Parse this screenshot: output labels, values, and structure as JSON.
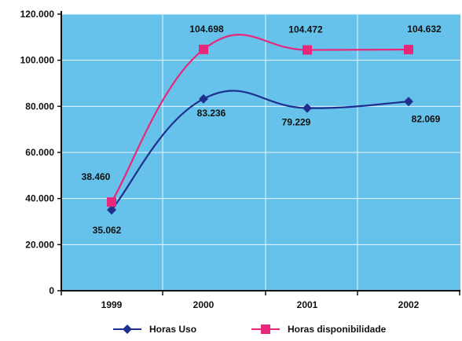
{
  "chart_data": {
    "type": "line",
    "title": "",
    "xlabel": "",
    "ylabel": "",
    "categories": [
      "1999",
      "2000",
      "2001",
      "2002"
    ],
    "ylim": [
      0,
      120000
    ],
    "y_ticks": [
      "0",
      "20.000",
      "40.000",
      "60.000",
      "80.000",
      "100.000",
      "120.000"
    ],
    "grid": true,
    "legend_position": "bottom",
    "series": [
      {
        "name": "Horas Uso",
        "color": "#1f2f8f",
        "marker": "diamond",
        "values": [
          35062,
          83236,
          79229,
          82069
        ],
        "labels": [
          "35.062",
          "83.236",
          "79.229",
          "82.069"
        ]
      },
      {
        "name": "Horas disponibilidade",
        "color": "#e8267a",
        "marker": "square",
        "values": [
          38460,
          104698,
          104472,
          104632
        ],
        "labels": [
          "38.460",
          "104.698",
          "104.472",
          "104.632"
        ]
      }
    ],
    "plot_background": "#66c2ea",
    "grid_color": "#e8f6fc"
  }
}
